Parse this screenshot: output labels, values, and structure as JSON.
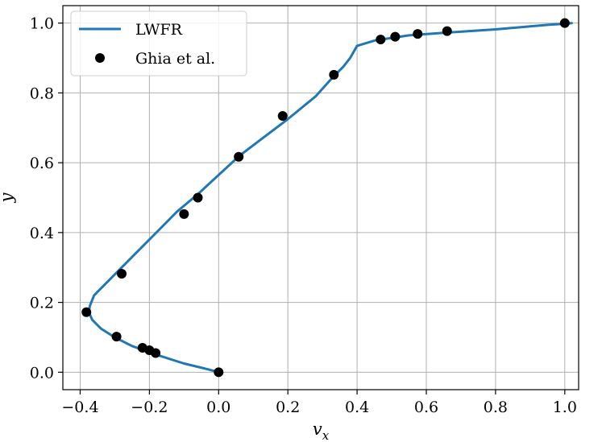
{
  "chart_data": {
    "type": "line",
    "xlabel": "v_x",
    "xlabel_main": "v",
    "xlabel_sub": "x",
    "ylabel": "y",
    "xlim": [
      -0.45,
      1.04
    ],
    "ylim": [
      -0.05,
      1.05
    ],
    "xticks": [
      -0.4,
      -0.2,
      0.0,
      0.2,
      0.4,
      0.6,
      0.8,
      1.0
    ],
    "xtick_labels": [
      "−0.4",
      "−0.2",
      "0.0",
      "0.2",
      "0.4",
      "0.6",
      "0.8",
      "1.0"
    ],
    "yticks": [
      0.0,
      0.2,
      0.4,
      0.6,
      0.8,
      1.0
    ],
    "ytick_labels": [
      "0.0",
      "0.2",
      "0.4",
      "0.6",
      "0.8",
      "1.0"
    ],
    "grid": true,
    "legend_position": "top-left",
    "series": [
      {
        "name": "LWFR",
        "kind": "line",
        "color": "#1f77b4",
        "x": [
          0.0,
          -0.03,
          -0.1,
          -0.18,
          -0.25,
          -0.3,
          -0.34,
          -0.365,
          -0.375,
          -0.372,
          -0.36,
          -0.33,
          -0.28,
          -0.22,
          -0.17,
          -0.12,
          -0.06,
          0.0,
          0.06,
          0.12,
          0.2,
          0.28,
          0.33,
          0.36,
          0.38,
          0.4,
          0.45,
          0.55,
          0.65,
          0.8,
          0.95,
          1.0,
          1.02
        ],
        "y": [
          0.0,
          0.008,
          0.025,
          0.05,
          0.075,
          0.1,
          0.125,
          0.15,
          0.172,
          0.19,
          0.22,
          0.25,
          0.3,
          0.36,
          0.41,
          0.46,
          0.51,
          0.565,
          0.62,
          0.665,
          0.725,
          0.79,
          0.845,
          0.875,
          0.9,
          0.935,
          0.95,
          0.965,
          0.972,
          0.982,
          0.995,
          0.998,
          1.0
        ]
      },
      {
        "name": "Ghia et al.",
        "kind": "scatter",
        "color": "#000000",
        "x": [
          0.0,
          -0.182,
          -0.2,
          -0.22,
          -0.295,
          -0.382,
          -0.28,
          -0.1,
          -0.06,
          0.058,
          0.185,
          0.333,
          0.468,
          0.51,
          0.575,
          0.66,
          1.0
        ],
        "y": [
          0.0,
          0.055,
          0.063,
          0.07,
          0.102,
          0.172,
          0.282,
          0.453,
          0.5,
          0.617,
          0.734,
          0.852,
          0.953,
          0.961,
          0.969,
          0.977,
          1.0
        ]
      }
    ]
  }
}
